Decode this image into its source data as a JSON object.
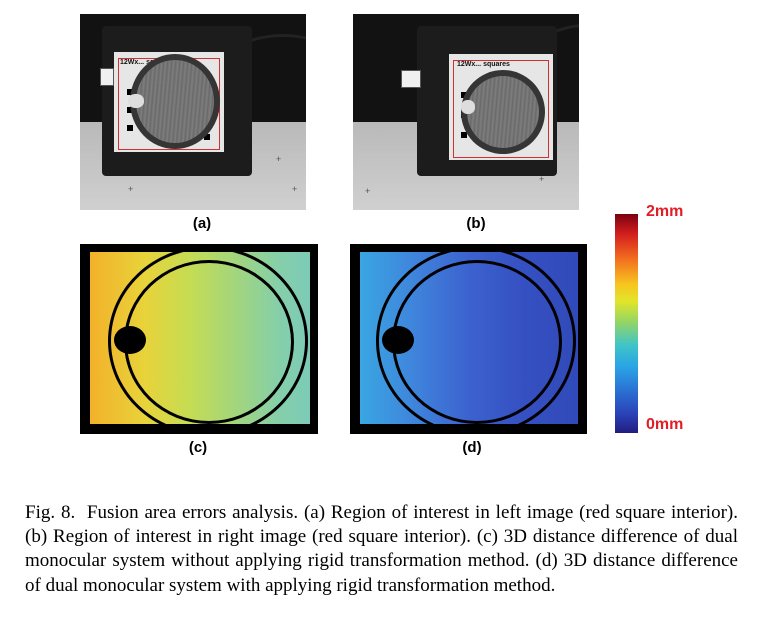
{
  "panels": {
    "a": {
      "label": "(a)",
      "board_text": "12Wx... squares"
    },
    "b": {
      "label": "(b)",
      "board_text": "12Wx... squares"
    },
    "c": {
      "label": "(c)"
    },
    "d": {
      "label": "(d)"
    }
  },
  "colorbar": {
    "max_label": "2mm",
    "min_label": "0mm",
    "colors": [
      "#7a0010",
      "#d21e1e",
      "#f26a1f",
      "#f7c51f",
      "#8ed46a",
      "#3fc4c8",
      "#2aa3e6",
      "#2a6bd0",
      "#211d7e"
    ],
    "label_color": "#e31d25"
  },
  "caption": {
    "prefix": "Fig. 8.",
    "text": "Fusion area errors analysis. (a) Region of interest in left image (red square interior). (b) Region of interest in right image (red square interior). (c) 3D distance difference of dual monocular system without applying rigid transformation method. (d) 3D distance difference of dual monocular system with applying rigid transformation method."
  }
}
